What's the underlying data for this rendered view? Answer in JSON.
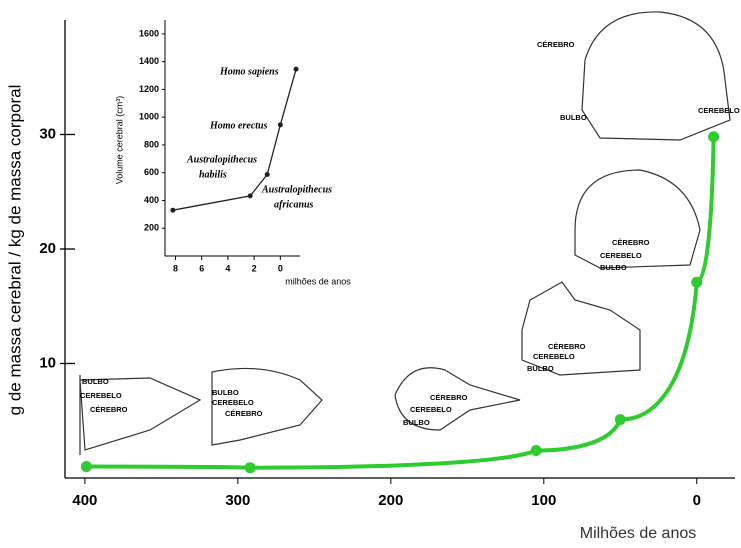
{
  "chart_data": [
    {
      "type": "line",
      "x_label": "Milhões de anos",
      "y_label": "g de massa cerebral / kg de massa corporal",
      "x": [
        399,
        292,
        105,
        50,
        0,
        -11
      ],
      "series": [
        {
          "color": "#2ecc2e",
          "values": [
            1.0,
            0.9,
            2.4,
            5.1,
            17.1,
            29.8
          ]
        }
      ],
      "xlim": [
        413,
        -25
      ],
      "xticks": [
        400,
        300,
        200,
        100,
        0
      ],
      "ylim": [
        0,
        40
      ],
      "yticks": [
        10,
        20,
        30
      ],
      "illustrations": [
        {
          "labels": [
            "BULBO",
            "CEREBELO",
            "CÉREBRO"
          ]
        },
        {
          "labels": [
            "BULBO",
            "CEREBELO",
            "CÉREBRO"
          ]
        },
        {
          "labels": [
            "CÉREBRO",
            "CEREBELO",
            "BULBO"
          ]
        },
        {
          "labels": [
            "CÉREBRO",
            "CEREBELO",
            "BULBO"
          ]
        },
        {
          "labels": [
            "CÉREBRO",
            "CEREBELO",
            "BULBO"
          ]
        },
        {
          "labels": [
            "CÉREBRO",
            "BULBO",
            "CEREBELO"
          ]
        }
      ]
    },
    {
      "type": "line",
      "x_label": "milhões de anos",
      "y_label": "Volume cerebral (cm³)",
      "x": [
        8.2,
        2.3,
        1.0,
        0,
        -1.2
      ],
      "series": [
        {
          "color": "#222222",
          "values": [
            330,
            433,
            587,
            945,
            1346
          ]
        }
      ],
      "xlim": [
        8.8,
        -1.5
      ],
      "xticks": [
        8,
        6,
        4,
        2,
        0
      ],
      "ylim": [
        0,
        1700
      ],
      "yticks": [
        200,
        400,
        600,
        800,
        1000,
        1200,
        1400,
        1600
      ],
      "annotations": [
        {
          "lines": [
            "Homo sapiens"
          ]
        },
        {
          "lines": [
            "Homo erectus"
          ]
        },
        {
          "lines": [
            "Australopithecus",
            "habilis"
          ]
        },
        {
          "lines": [
            "Australopithecus",
            "africanus"
          ]
        }
      ]
    }
  ]
}
